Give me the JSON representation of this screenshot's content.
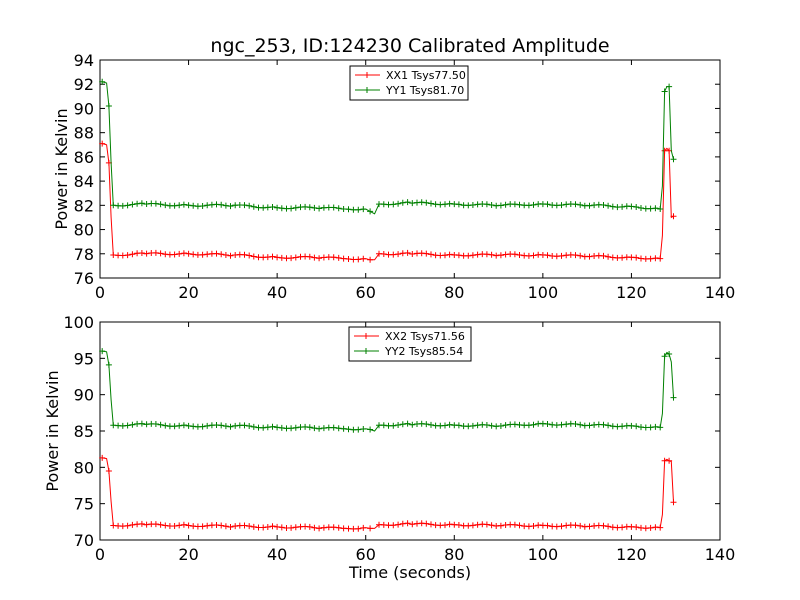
{
  "chart_data": [
    {
      "type": "line",
      "title": "ngc_253, ID:124230 Calibrated Amplitude",
      "xlabel": "",
      "ylabel": "Power in Kelvin",
      "xlim": [
        0,
        140
      ],
      "ylim": [
        76,
        94
      ],
      "xticks": [
        "0",
        "20",
        "40",
        "60",
        "80",
        "100",
        "120",
        "140"
      ],
      "yticks": [
        "76",
        "78",
        "80",
        "82",
        "84",
        "86",
        "88",
        "90",
        "92",
        "94"
      ],
      "legend_position": "top-center",
      "series": [
        {
          "name": "XX1 Tsys77.50",
          "color": "#ff0000",
          "x": [
            0.5,
            1.5,
            2.0,
            2.5,
            3,
            10,
            20,
            30,
            40,
            50,
            55,
            60,
            61,
            62,
            63,
            70,
            80,
            90,
            100,
            110,
            120,
            126.5,
            127,
            127.5,
            128,
            128.5,
            129,
            129.5
          ],
          "y": [
            87.1,
            87.0,
            85.5,
            81.0,
            77.9,
            78.0,
            78.0,
            77.9,
            77.7,
            77.7,
            77.6,
            77.6,
            77.5,
            77.5,
            78.0,
            78.0,
            77.9,
            77.9,
            77.9,
            77.8,
            77.7,
            77.6,
            79.5,
            86.5,
            86.7,
            86.5,
            81.0,
            81.1
          ]
        },
        {
          "name": "YY1 Tsys81.70",
          "color": "#008000",
          "x": [
            0.5,
            1.5,
            2.0,
            2.5,
            3,
            10,
            20,
            30,
            40,
            50,
            55,
            60,
            61,
            62,
            63,
            70,
            80,
            90,
            100,
            110,
            120,
            126.5,
            127,
            127.5,
            128,
            128.5,
            129,
            129.5
          ],
          "y": [
            92.2,
            92.1,
            90.2,
            85.5,
            82.0,
            82.1,
            82.0,
            82.0,
            81.8,
            81.8,
            81.7,
            81.7,
            81.5,
            81.3,
            82.1,
            82.2,
            82.1,
            82.0,
            82.1,
            82.0,
            81.9,
            81.7,
            83.6,
            91.4,
            91.8,
            91.8,
            86.5,
            85.8
          ]
        }
      ]
    },
    {
      "type": "line",
      "title": "",
      "xlabel": "Time (seconds)",
      "ylabel": "Power in Kelvin",
      "xlim": [
        0,
        140
      ],
      "ylim": [
        70,
        100
      ],
      "xticks": [
        "0",
        "20",
        "40",
        "60",
        "80",
        "100",
        "120",
        "140"
      ],
      "yticks": [
        "70",
        "75",
        "80",
        "85",
        "90",
        "95",
        "100"
      ],
      "legend_position": "top-center",
      "series": [
        {
          "name": "XX2 Tsys71.56",
          "color": "#ff0000",
          "x": [
            0.5,
            1.5,
            2.0,
            2.5,
            3,
            10,
            20,
            30,
            40,
            50,
            55,
            60,
            61,
            62,
            63,
            70,
            80,
            90,
            100,
            110,
            120,
            126.5,
            127,
            127.5,
            128,
            128.5,
            129,
            129.5
          ],
          "y": [
            81.3,
            81.2,
            79.5,
            75.3,
            72.0,
            72.1,
            72.0,
            71.9,
            71.8,
            71.7,
            71.6,
            71.7,
            71.6,
            71.6,
            72.1,
            72.2,
            72.1,
            72.0,
            72.0,
            71.9,
            71.8,
            71.7,
            73.5,
            80.9,
            81.1,
            80.9,
            80.8,
            75.2
          ]
        },
        {
          "name": "YY2 Tsys85.54",
          "color": "#008000",
          "x": [
            0.5,
            1.5,
            2.0,
            2.5,
            3,
            10,
            20,
            30,
            40,
            50,
            55,
            60,
            61,
            62,
            63,
            70,
            80,
            90,
            100,
            110,
            120,
            126.5,
            127,
            127.5,
            128,
            128.5,
            129,
            129.5
          ],
          "y": [
            96.0,
            95.9,
            94.1,
            89.3,
            85.8,
            85.9,
            85.7,
            85.7,
            85.5,
            85.4,
            85.3,
            85.3,
            85.2,
            85.0,
            85.8,
            85.9,
            85.8,
            85.7,
            86.0,
            85.8,
            85.7,
            85.5,
            87.4,
            95.3,
            95.8,
            95.6,
            94.5,
            89.6
          ]
        }
      ]
    }
  ]
}
